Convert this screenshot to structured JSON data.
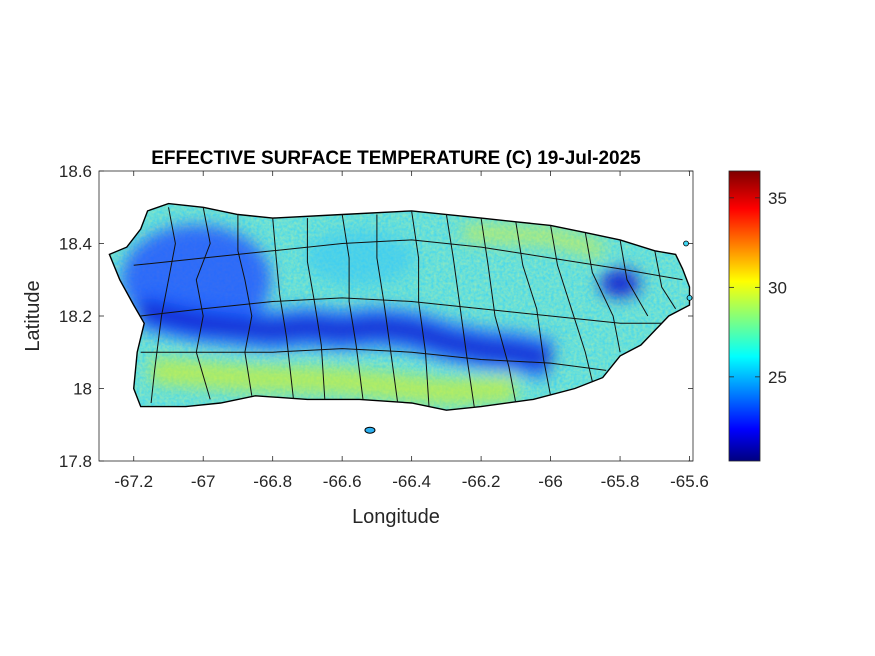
{
  "chart_data": {
    "type": "heatmap",
    "title": "EFFECTIVE SURFACE TEMPERATURE (C) 19-Jul-2025",
    "xlabel": "Longitude",
    "ylabel": "Latitude",
    "xlim": [
      -67.3,
      -65.59
    ],
    "ylim": [
      17.8,
      18.6
    ],
    "xticks": [
      -67.2,
      -67,
      -66.8,
      -66.6,
      -66.4,
      -66.2,
      -66,
      -65.8,
      -65.6
    ],
    "xtick_labels": [
      "-67.2",
      "-67",
      "-66.8",
      "-66.6",
      "-66.4",
      "-66.2",
      "-66",
      "-65.8",
      "-65.6"
    ],
    "yticks": [
      17.8,
      18,
      18.2,
      18.4,
      18.6
    ],
    "ytick_labels": [
      "17.8",
      "18",
      "18.2",
      "18.4",
      "18.6"
    ],
    "colorbar": {
      "range": [
        20.3,
        36.5
      ],
      "ticks": [
        25,
        30,
        35
      ],
      "tick_labels": [
        "25",
        "30",
        "35"
      ],
      "colormap": "jet"
    },
    "outline": [
      [
        -67.27,
        18.37
      ],
      [
        -67.22,
        18.39
      ],
      [
        -67.18,
        18.44
      ],
      [
        -67.16,
        18.49
      ],
      [
        -67.1,
        18.51
      ],
      [
        -67.0,
        18.5
      ],
      [
        -66.9,
        18.48
      ],
      [
        -66.8,
        18.47
      ],
      [
        -66.6,
        18.48
      ],
      [
        -66.4,
        18.49
      ],
      [
        -66.2,
        18.47
      ],
      [
        -66.1,
        18.46
      ],
      [
        -66.0,
        18.45
      ],
      [
        -65.9,
        18.43
      ],
      [
        -65.8,
        18.41
      ],
      [
        -65.7,
        18.38
      ],
      [
        -65.64,
        18.37
      ],
      [
        -65.62,
        18.33
      ],
      [
        -65.6,
        18.28
      ],
      [
        -65.6,
        18.23
      ],
      [
        -65.66,
        18.2
      ],
      [
        -65.7,
        18.16
      ],
      [
        -65.74,
        18.12
      ],
      [
        -65.8,
        18.09
      ],
      [
        -65.85,
        18.03
      ],
      [
        -65.93,
        18.0
      ],
      [
        -66.05,
        17.97
      ],
      [
        -66.2,
        17.95
      ],
      [
        -66.3,
        17.94
      ],
      [
        -66.4,
        17.96
      ],
      [
        -66.55,
        17.97
      ],
      [
        -66.7,
        17.97
      ],
      [
        -66.85,
        17.98
      ],
      [
        -66.95,
        17.96
      ],
      [
        -67.05,
        17.95
      ],
      [
        -67.12,
        17.95
      ],
      [
        -67.18,
        17.95
      ],
      [
        -67.2,
        18.0
      ],
      [
        -67.19,
        18.1
      ],
      [
        -67.17,
        18.18
      ],
      [
        -67.2,
        18.23
      ],
      [
        -67.24,
        18.3
      ],
      [
        -67.27,
        18.37
      ]
    ],
    "cold_spine": [
      [
        -67.18,
        18.22
      ],
      [
        -67.1,
        18.2
      ],
      [
        -67.0,
        18.18
      ],
      [
        -66.9,
        18.17
      ],
      [
        -66.8,
        18.16
      ],
      [
        -66.7,
        18.17
      ],
      [
        -66.6,
        18.16
      ],
      [
        -66.5,
        18.17
      ],
      [
        -66.4,
        18.16
      ],
      [
        -66.3,
        18.13
      ],
      [
        -66.2,
        18.11
      ],
      [
        -66.1,
        18.1
      ],
      [
        -66.0,
        18.08
      ]
    ]
  }
}
